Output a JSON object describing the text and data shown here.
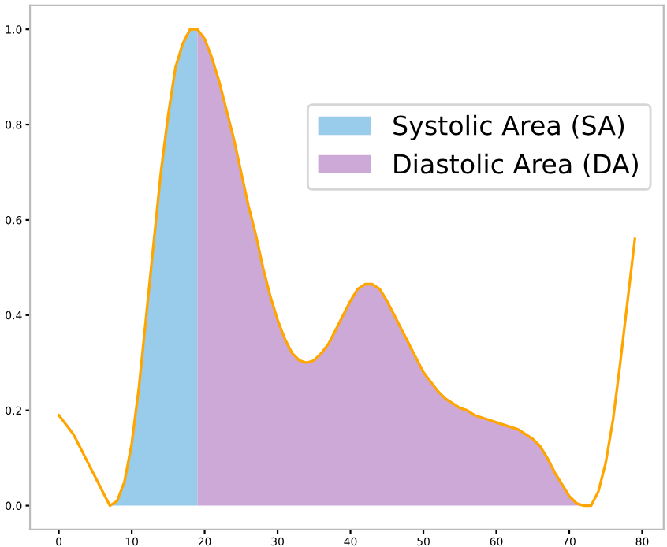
{
  "chart_data": {
    "type": "line",
    "x": [
      0,
      1,
      2,
      3,
      4,
      5,
      6,
      7,
      8,
      9,
      10,
      11,
      12,
      13,
      14,
      15,
      16,
      17,
      18,
      19,
      20,
      21,
      22,
      23,
      24,
      25,
      26,
      27,
      28,
      29,
      30,
      31,
      32,
      33,
      34,
      35,
      36,
      37,
      38,
      39,
      40,
      41,
      42,
      43,
      44,
      45,
      46,
      47,
      48,
      49,
      50,
      51,
      52,
      53,
      54,
      55,
      56,
      57,
      58,
      59,
      60,
      61,
      62,
      63,
      64,
      65,
      66,
      67,
      68,
      69,
      70,
      71,
      72,
      73,
      74,
      75,
      76,
      77,
      78,
      79
    ],
    "series": [
      {
        "type": "area",
        "name": "Systolic Area (SA)",
        "color": "#99cbea",
        "x": [
          7,
          8,
          9,
          10,
          11,
          12,
          13,
          14,
          15,
          16,
          17,
          18,
          19
        ],
        "values": [
          0.0,
          0.01,
          0.05,
          0.13,
          0.25,
          0.4,
          0.55,
          0.7,
          0.82,
          0.92,
          0.97,
          1.0,
          1.0
        ]
      },
      {
        "type": "area",
        "name": "Diastolic Area (DA)",
        "color": "#cda9d8",
        "x": [
          19,
          20,
          21,
          22,
          23,
          24,
          25,
          26,
          27,
          28,
          29,
          30,
          31,
          32,
          33,
          34,
          35,
          36,
          37,
          38,
          39,
          40,
          41,
          42,
          43,
          44,
          45,
          46,
          47,
          48,
          49,
          50,
          51,
          52,
          53,
          54,
          55,
          56,
          57,
          58,
          59,
          60,
          61,
          62,
          63,
          64,
          65,
          66,
          67,
          68,
          69,
          70,
          71,
          72
        ],
        "values": [
          1.0,
          0.98,
          0.94,
          0.89,
          0.83,
          0.77,
          0.7,
          0.63,
          0.57,
          0.5,
          0.44,
          0.39,
          0.35,
          0.32,
          0.305,
          0.3,
          0.305,
          0.32,
          0.34,
          0.37,
          0.4,
          0.43,
          0.455,
          0.465,
          0.465,
          0.455,
          0.43,
          0.4,
          0.37,
          0.34,
          0.31,
          0.28,
          0.26,
          0.24,
          0.225,
          0.215,
          0.205,
          0.2,
          0.19,
          0.185,
          0.18,
          0.175,
          0.17,
          0.165,
          0.16,
          0.15,
          0.14,
          0.125,
          0.1,
          0.07,
          0.045,
          0.02,
          0.005,
          0.0
        ]
      },
      {
        "color": "#ffa500",
        "values": [
          0.19,
          0.17,
          0.15,
          0.12,
          0.09,
          0.06,
          0.03,
          0.0,
          0.01,
          0.05,
          0.13,
          0.25,
          0.4,
          0.55,
          0.7,
          0.82,
          0.92,
          0.97,
          1.0,
          1.0,
          0.98,
          0.94,
          0.89,
          0.83,
          0.77,
          0.7,
          0.63,
          0.57,
          0.5,
          0.44,
          0.39,
          0.35,
          0.32,
          0.305,
          0.3,
          0.305,
          0.32,
          0.34,
          0.37,
          0.4,
          0.43,
          0.455,
          0.465,
          0.465,
          0.455,
          0.43,
          0.4,
          0.37,
          0.34,
          0.31,
          0.28,
          0.26,
          0.24,
          0.225,
          0.215,
          0.205,
          0.2,
          0.19,
          0.185,
          0.18,
          0.175,
          0.17,
          0.165,
          0.16,
          0.15,
          0.14,
          0.125,
          0.1,
          0.07,
          0.045,
          0.02,
          0.005,
          0.0,
          0.0,
          0.03,
          0.09,
          0.18,
          0.3,
          0.43,
          0.56
        ]
      }
    ],
    "xlim": [
      -3.95,
      82.95
    ],
    "ylim": [
      -0.05,
      1.05
    ],
    "xticks": [
      0,
      10,
      20,
      30,
      40,
      50,
      60,
      70,
      80
    ],
    "yticks": [
      {
        "value": 0,
        "label": "0.0"
      },
      {
        "value": 0.2,
        "label": "0.2"
      },
      {
        "value": 0.4,
        "label": "0.4"
      },
      {
        "value": 0.6,
        "label": "0.6"
      },
      {
        "value": 0.8,
        "label": "0.8"
      },
      {
        "value": 1,
        "label": "1.0"
      }
    ],
    "grid": false,
    "legend": "right",
    "marker": "none",
    "line_style": "solid"
  }
}
